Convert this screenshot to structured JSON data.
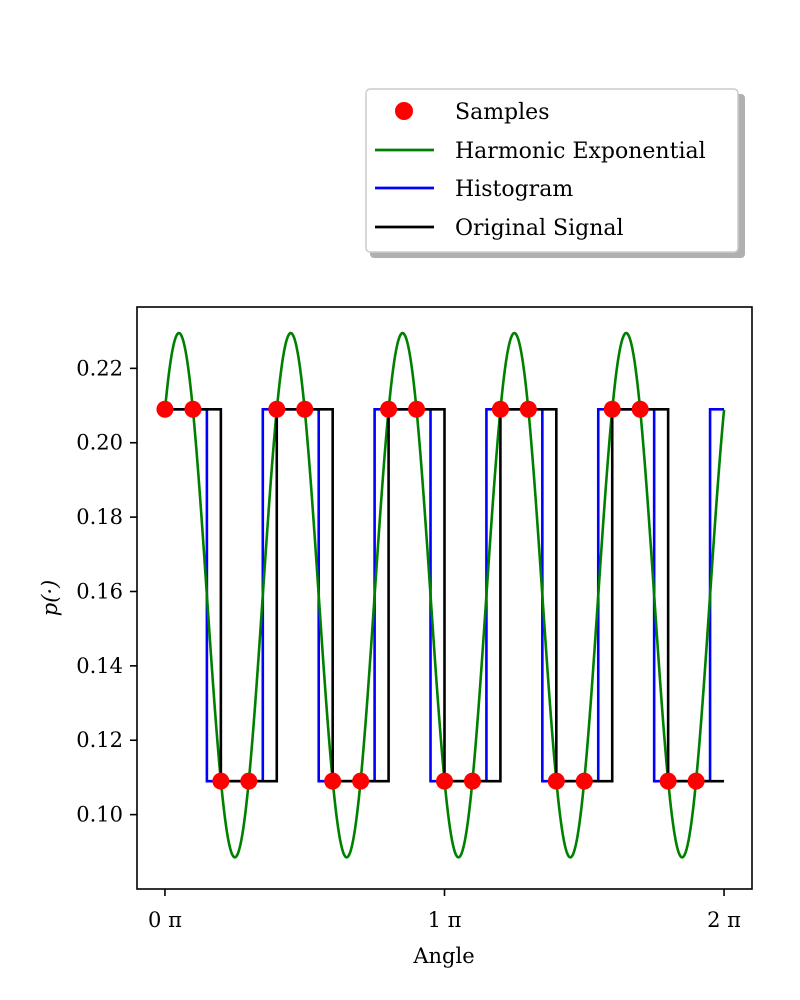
{
  "chart_data": {
    "type": "line",
    "xlabel": "Angle",
    "ylabel": "p(·)",
    "xlim": [
      -0.1,
      2.1
    ],
    "ylim": [
      0.08,
      0.2365
    ],
    "x_unit": "π",
    "x_ticks": [
      0,
      1,
      2
    ],
    "x_tick_labels": [
      "0 π",
      "1 π",
      "2 π"
    ],
    "y_ticks": [
      0.1,
      0.12,
      0.14,
      0.16,
      0.18,
      0.2,
      0.22
    ],
    "y_tick_labels": [
      "0.10",
      "0.12",
      "0.14",
      "0.16",
      "0.18",
      "0.20",
      "0.22"
    ],
    "legend_position": "top-right, outside above plot",
    "series": [
      {
        "name": "Samples",
        "kind": "scatter",
        "color": "#ff0000",
        "x": [
          0,
          0.1,
          0.2,
          0.3,
          0.4,
          0.5,
          0.6,
          0.7,
          0.8,
          0.9,
          1.0,
          1.1,
          1.2,
          1.3,
          1.4,
          1.5,
          1.6,
          1.7,
          1.8,
          1.9
        ],
        "y": [
          0.209,
          0.209,
          0.109,
          0.109,
          0.209,
          0.209,
          0.109,
          0.109,
          0.209,
          0.209,
          0.109,
          0.109,
          0.209,
          0.209,
          0.109,
          0.109,
          0.209,
          0.209,
          0.109,
          0.109
        ]
      },
      {
        "name": "Harmonic Exponential",
        "kind": "line",
        "color": "#008000",
        "mean": 0.159,
        "amplitude": 0.0705,
        "cycles": 5,
        "phase_shift": 0.05,
        "x_range": [
          0,
          2
        ]
      },
      {
        "name": "Histogram",
        "kind": "step",
        "color": "#0000ff",
        "edges": [
          0,
          0.15,
          0.35,
          0.55,
          0.75,
          0.95,
          1.15,
          1.35,
          1.55,
          1.75,
          1.95,
          2.0
        ],
        "values": [
          0.209,
          0.109,
          0.209,
          0.109,
          0.209,
          0.109,
          0.209,
          0.109,
          0.209,
          0.109,
          0.209
        ]
      },
      {
        "name": "Original Signal",
        "kind": "step",
        "color": "#000000",
        "edges": [
          0,
          0.2,
          0.4,
          0.6,
          0.8,
          1.0,
          1.2,
          1.4,
          1.6,
          1.8,
          2.0
        ],
        "values": [
          0.209,
          0.109,
          0.209,
          0.109,
          0.209,
          0.109,
          0.209,
          0.109,
          0.209,
          0.109
        ]
      }
    ]
  }
}
